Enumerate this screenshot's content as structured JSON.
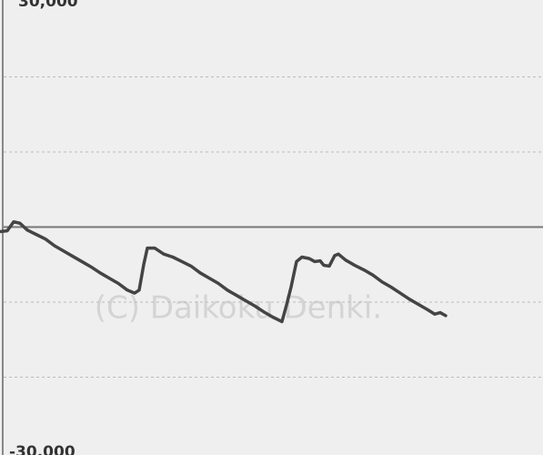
{
  "chart_data": {
    "type": "line",
    "annotation": "(C) Daikoku Denki.",
    "x": [
      0,
      8,
      15,
      22,
      30,
      40,
      50,
      60,
      70,
      80,
      90,
      100,
      110,
      120,
      130,
      140,
      148,
      153,
      158,
      162,
      170,
      180,
      190,
      200,
      210,
      220,
      230,
      240,
      250,
      260,
      270,
      280,
      290,
      300,
      310,
      315,
      320,
      326,
      332,
      340,
      346,
      352,
      356,
      362,
      368,
      372,
      380,
      390,
      400,
      410,
      420,
      430,
      440,
      450,
      460,
      470,
      478,
      484,
      490
    ],
    "xlim": [
      0,
      597
    ],
    "series": [
      {
        "color": "#444444",
        "values": [
          -600,
          -500,
          700,
          500,
          -400,
          -1000,
          -1600,
          -2500,
          -3200,
          -3900,
          -4600,
          -5300,
          -6100,
          -6800,
          -7500,
          -8400,
          -8800,
          -8400,
          -5000,
          -2800,
          -2800,
          -3600,
          -4000,
          -4600,
          -5200,
          -6100,
          -6800,
          -7500,
          -8400,
          -9100,
          -9800,
          -10500,
          -11300,
          -12000,
          -12600,
          -10400,
          -8000,
          -4600,
          -4000,
          -4200,
          -4600,
          -4500,
          -5100,
          -5200,
          -3800,
          -3600,
          -4400,
          -5100,
          -5700,
          -6400,
          -7300,
          -8000,
          -8800,
          -9600,
          -10300,
          -11000,
          -11600,
          -11400,
          -11800
        ]
      }
    ],
    "ylim": [
      -30000,
      30000
    ],
    "yticks": [
      {
        "value": 30000,
        "label": "30,000"
      },
      {
        "value": -30000,
        "label": "-30,000"
      }
    ],
    "ygrid": [
      20000,
      10000,
      0,
      -10000,
      -20000
    ],
    "grid": true
  }
}
